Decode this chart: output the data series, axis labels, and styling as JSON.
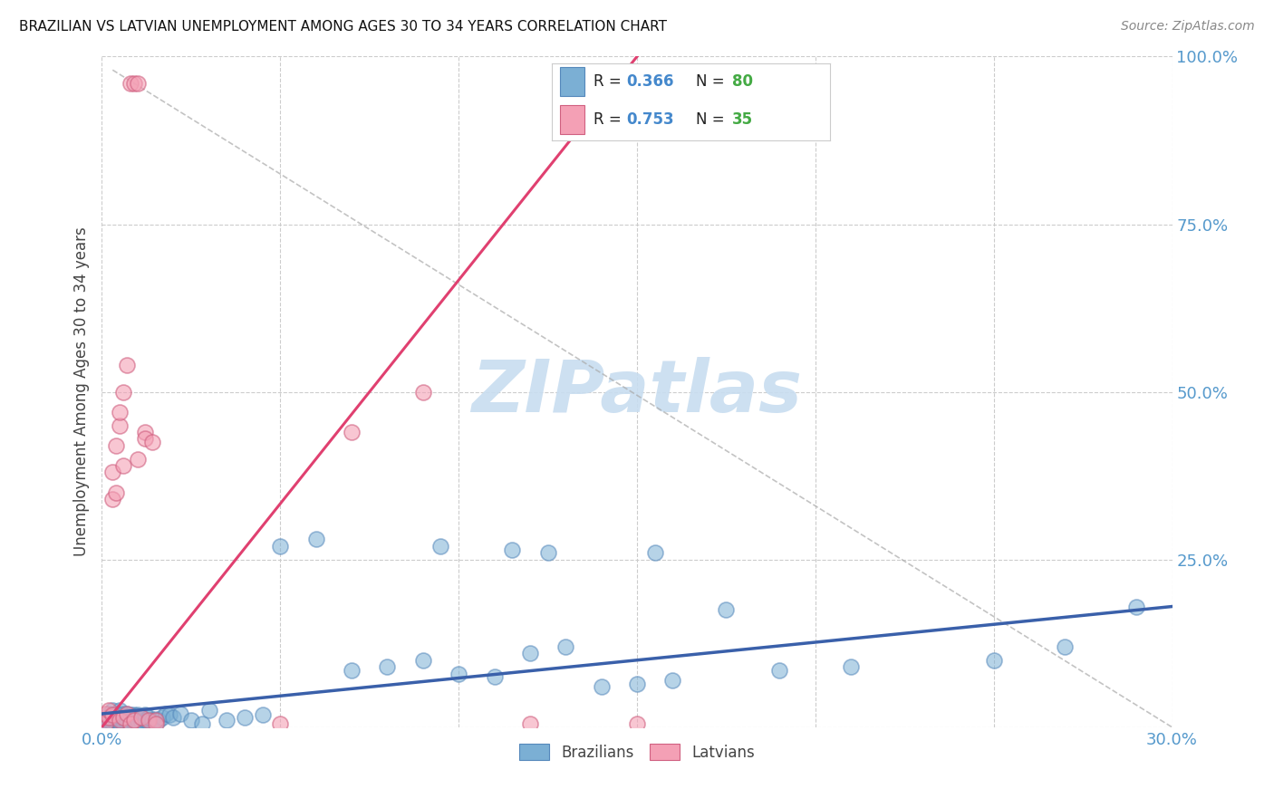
{
  "title": "BRAZILIAN VS LATVIAN UNEMPLOYMENT AMONG AGES 30 TO 34 YEARS CORRELATION CHART",
  "source": "Source: ZipAtlas.com",
  "ylabel": "Unemployment Among Ages 30 to 34 years",
  "xlim": [
    0.0,
    0.3
  ],
  "ylim": [
    0.0,
    1.0
  ],
  "grid_color": "#cccccc",
  "background_color": "#ffffff",
  "brazil_color": "#7bafd4",
  "brazil_edge_color": "#5588bb",
  "latvia_color": "#f4a0b5",
  "latvia_edge_color": "#d06080",
  "brazil_R": 0.366,
  "brazil_N": 80,
  "latvia_R": 0.753,
  "latvia_N": 35,
  "brazil_line_color": "#3a60aa",
  "latvia_line_color": "#e04070",
  "legend_R_color": "#4488cc",
  "legend_N_color": "#44aa44",
  "watermark_color": "#c8ddf0",
  "brazil_x": [
    0.001,
    0.001,
    0.001,
    0.002,
    0.002,
    0.002,
    0.002,
    0.003,
    0.003,
    0.003,
    0.003,
    0.003,
    0.004,
    0.004,
    0.004,
    0.004,
    0.005,
    0.005,
    0.005,
    0.005,
    0.005,
    0.006,
    0.006,
    0.006,
    0.006,
    0.007,
    0.007,
    0.007,
    0.007,
    0.008,
    0.008,
    0.008,
    0.009,
    0.009,
    0.009,
    0.01,
    0.01,
    0.01,
    0.011,
    0.011,
    0.012,
    0.012,
    0.013,
    0.013,
    0.014,
    0.015,
    0.016,
    0.017,
    0.018,
    0.019,
    0.02,
    0.022,
    0.025,
    0.028,
    0.03,
    0.035,
    0.04,
    0.045,
    0.05,
    0.06,
    0.07,
    0.08,
    0.09,
    0.095,
    0.1,
    0.11,
    0.115,
    0.12,
    0.125,
    0.13,
    0.14,
    0.15,
    0.155,
    0.16,
    0.175,
    0.19,
    0.21,
    0.25,
    0.27,
    0.29
  ],
  "brazil_y": [
    0.005,
    0.008,
    0.012,
    0.006,
    0.01,
    0.015,
    0.02,
    0.005,
    0.008,
    0.012,
    0.018,
    0.025,
    0.005,
    0.01,
    0.015,
    0.02,
    0.005,
    0.008,
    0.012,
    0.018,
    0.025,
    0.005,
    0.01,
    0.015,
    0.02,
    0.005,
    0.01,
    0.015,
    0.02,
    0.005,
    0.012,
    0.018,
    0.006,
    0.012,
    0.018,
    0.005,
    0.01,
    0.018,
    0.008,
    0.015,
    0.01,
    0.018,
    0.008,
    0.015,
    0.01,
    0.012,
    0.01,
    0.015,
    0.02,
    0.018,
    0.015,
    0.02,
    0.01,
    0.005,
    0.025,
    0.01,
    0.015,
    0.018,
    0.27,
    0.28,
    0.085,
    0.09,
    0.1,
    0.27,
    0.08,
    0.075,
    0.265,
    0.11,
    0.26,
    0.12,
    0.06,
    0.065,
    0.26,
    0.07,
    0.175,
    0.085,
    0.09,
    0.1,
    0.12,
    0.18
  ],
  "latvia_x": [
    0.001,
    0.001,
    0.002,
    0.002,
    0.003,
    0.003,
    0.003,
    0.004,
    0.004,
    0.005,
    0.005,
    0.005,
    0.006,
    0.006,
    0.006,
    0.007,
    0.007,
    0.008,
    0.008,
    0.009,
    0.009,
    0.01,
    0.01,
    0.011,
    0.012,
    0.012,
    0.013,
    0.014,
    0.015,
    0.015,
    0.05,
    0.07,
    0.09,
    0.12,
    0.15
  ],
  "latvia_y": [
    0.005,
    0.02,
    0.015,
    0.025,
    0.34,
    0.38,
    0.018,
    0.35,
    0.42,
    0.45,
    0.47,
    0.01,
    0.5,
    0.39,
    0.015,
    0.54,
    0.02,
    0.005,
    0.96,
    0.96,
    0.01,
    0.96,
    0.4,
    0.015,
    0.44,
    0.43,
    0.01,
    0.425,
    0.01,
    0.005,
    0.005,
    0.44,
    0.5,
    0.005,
    0.005
  ],
  "latvia_line_x": [
    0.0,
    0.15
  ],
  "latvia_line_y": [
    0.0,
    1.0
  ],
  "brazil_line_x": [
    0.0,
    0.3
  ],
  "brazil_line_y": [
    0.02,
    0.18
  ],
  "dashed_gray_line_x": [
    0.003,
    0.3
  ],
  "dashed_gray_line_y": [
    0.98,
    0.0
  ]
}
